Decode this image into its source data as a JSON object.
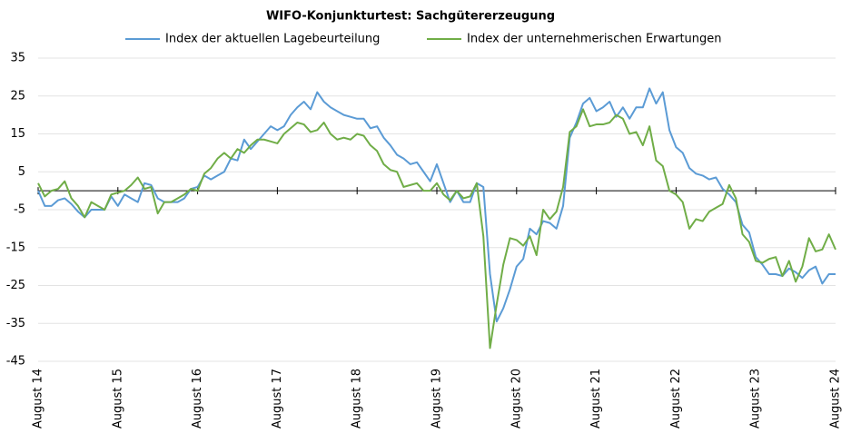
{
  "chart_data": {
    "type": "line",
    "title": "WIFO-Konjunkturtest: Sachgütererzeugung",
    "categories": [
      "August 14",
      null,
      null,
      null,
      null,
      null,
      null,
      null,
      null,
      null,
      null,
      null,
      "August 15",
      null,
      null,
      null,
      null,
      null,
      null,
      null,
      null,
      null,
      null,
      null,
      "August 16",
      null,
      null,
      null,
      null,
      null,
      null,
      null,
      null,
      null,
      null,
      null,
      "August 17",
      null,
      null,
      null,
      null,
      null,
      null,
      null,
      null,
      null,
      null,
      null,
      "August 18",
      null,
      null,
      null,
      null,
      null,
      null,
      null,
      null,
      null,
      null,
      null,
      "August 19",
      null,
      null,
      null,
      null,
      null,
      null,
      null,
      null,
      null,
      null,
      null,
      "August 20",
      null,
      null,
      null,
      null,
      null,
      null,
      null,
      null,
      null,
      null,
      null,
      "August 21",
      null,
      null,
      null,
      null,
      null,
      null,
      null,
      null,
      null,
      null,
      null,
      "August 22",
      null,
      null,
      null,
      null,
      null,
      null,
      null,
      null,
      null,
      null,
      null,
      "August 23",
      null,
      null,
      null,
      null,
      null,
      null,
      null,
      null,
      null,
      null,
      null,
      "August 24"
    ],
    "series": [
      {
        "name": "Index der aktuellen Lagebeurteilung",
        "color": "#5b9bd5",
        "values": [
          0,
          -4,
          -4,
          -2.5,
          -2,
          -3.5,
          -5.5,
          -7,
          -5,
          -5,
          -5,
          -1.5,
          -4,
          -1,
          -2,
          -3,
          2,
          1.5,
          -2,
          -3,
          -3,
          -3,
          -2,
          0.5,
          1,
          4,
          3,
          4,
          5,
          8.5,
          8,
          13.5,
          11,
          13,
          15,
          17,
          16,
          17,
          20,
          22,
          23.5,
          21.5,
          26,
          23.5,
          22,
          21,
          20,
          19.5,
          19,
          19,
          16.5,
          17,
          14,
          12,
          9.5,
          8.5,
          7,
          7.5,
          5,
          2.5,
          7,
          2,
          -3,
          0,
          -3,
          -3,
          2,
          1,
          -22,
          -34.5,
          -31,
          -26,
          -20,
          -18,
          -10,
          -11.5,
          -8,
          -8.5,
          -10,
          -4,
          14,
          18,
          23,
          24.5,
          21,
          22,
          23.5,
          19.5,
          22,
          19,
          22,
          22,
          27,
          23,
          26,
          16,
          11.5,
          10,
          6,
          4.5,
          4,
          3,
          3.5,
          0.5,
          -1,
          -3,
          -9,
          -11,
          -17.5,
          -19.5,
          -22,
          -22,
          -22.5,
          -20.5,
          -21.5,
          -23,
          -21,
          -20,
          -24.5,
          -22,
          -22
        ]
      },
      {
        "name": "Index der unternehmerischen Erwartungen",
        "color": "#70ad47",
        "values": [
          2,
          -1.5,
          0,
          0.5,
          2.5,
          -2,
          -4,
          -7,
          -3,
          -4,
          -5,
          -1,
          -0.5,
          0,
          1.5,
          3.5,
          0.5,
          1,
          -6,
          -3,
          -3,
          -2,
          -1,
          0.5,
          0,
          4.5,
          6,
          8.5,
          10,
          8.5,
          11,
          10,
          12,
          13.5,
          13.5,
          13,
          12.5,
          15,
          16.5,
          18,
          17.5,
          15.5,
          16,
          18,
          15,
          13.5,
          14,
          13.5,
          15,
          14.5,
          12,
          10.5,
          7,
          5.5,
          5,
          1,
          1.5,
          2,
          0,
          0,
          2,
          -1,
          -2.5,
          0,
          -2,
          -1.5,
          2,
          -12,
          -41.5,
          -30,
          -19.5,
          -12.5,
          -13,
          -14.5,
          -12,
          -17,
          -5,
          -7.5,
          -5.5,
          1,
          15.5,
          17,
          21.5,
          17,
          17.5,
          17.5,
          18,
          20,
          19,
          15,
          15.5,
          12,
          17,
          8,
          6.5,
          0,
          -1,
          -3,
          -10,
          -7.5,
          -8,
          -5.5,
          -4.5,
          -3.5,
          1.5,
          -2,
          -11.5,
          -13.5,
          -18.5,
          -19,
          -18,
          -17.5,
          -22.5,
          -18.5,
          -24,
          -20,
          -12.5,
          -16,
          -15.5,
          -11.5,
          -15.5
        ]
      }
    ],
    "ylim": [
      -45,
      35
    ],
    "yticks": [
      -45,
      -35,
      -25,
      -15,
      -5,
      5,
      15,
      25,
      35
    ],
    "grid": true
  }
}
